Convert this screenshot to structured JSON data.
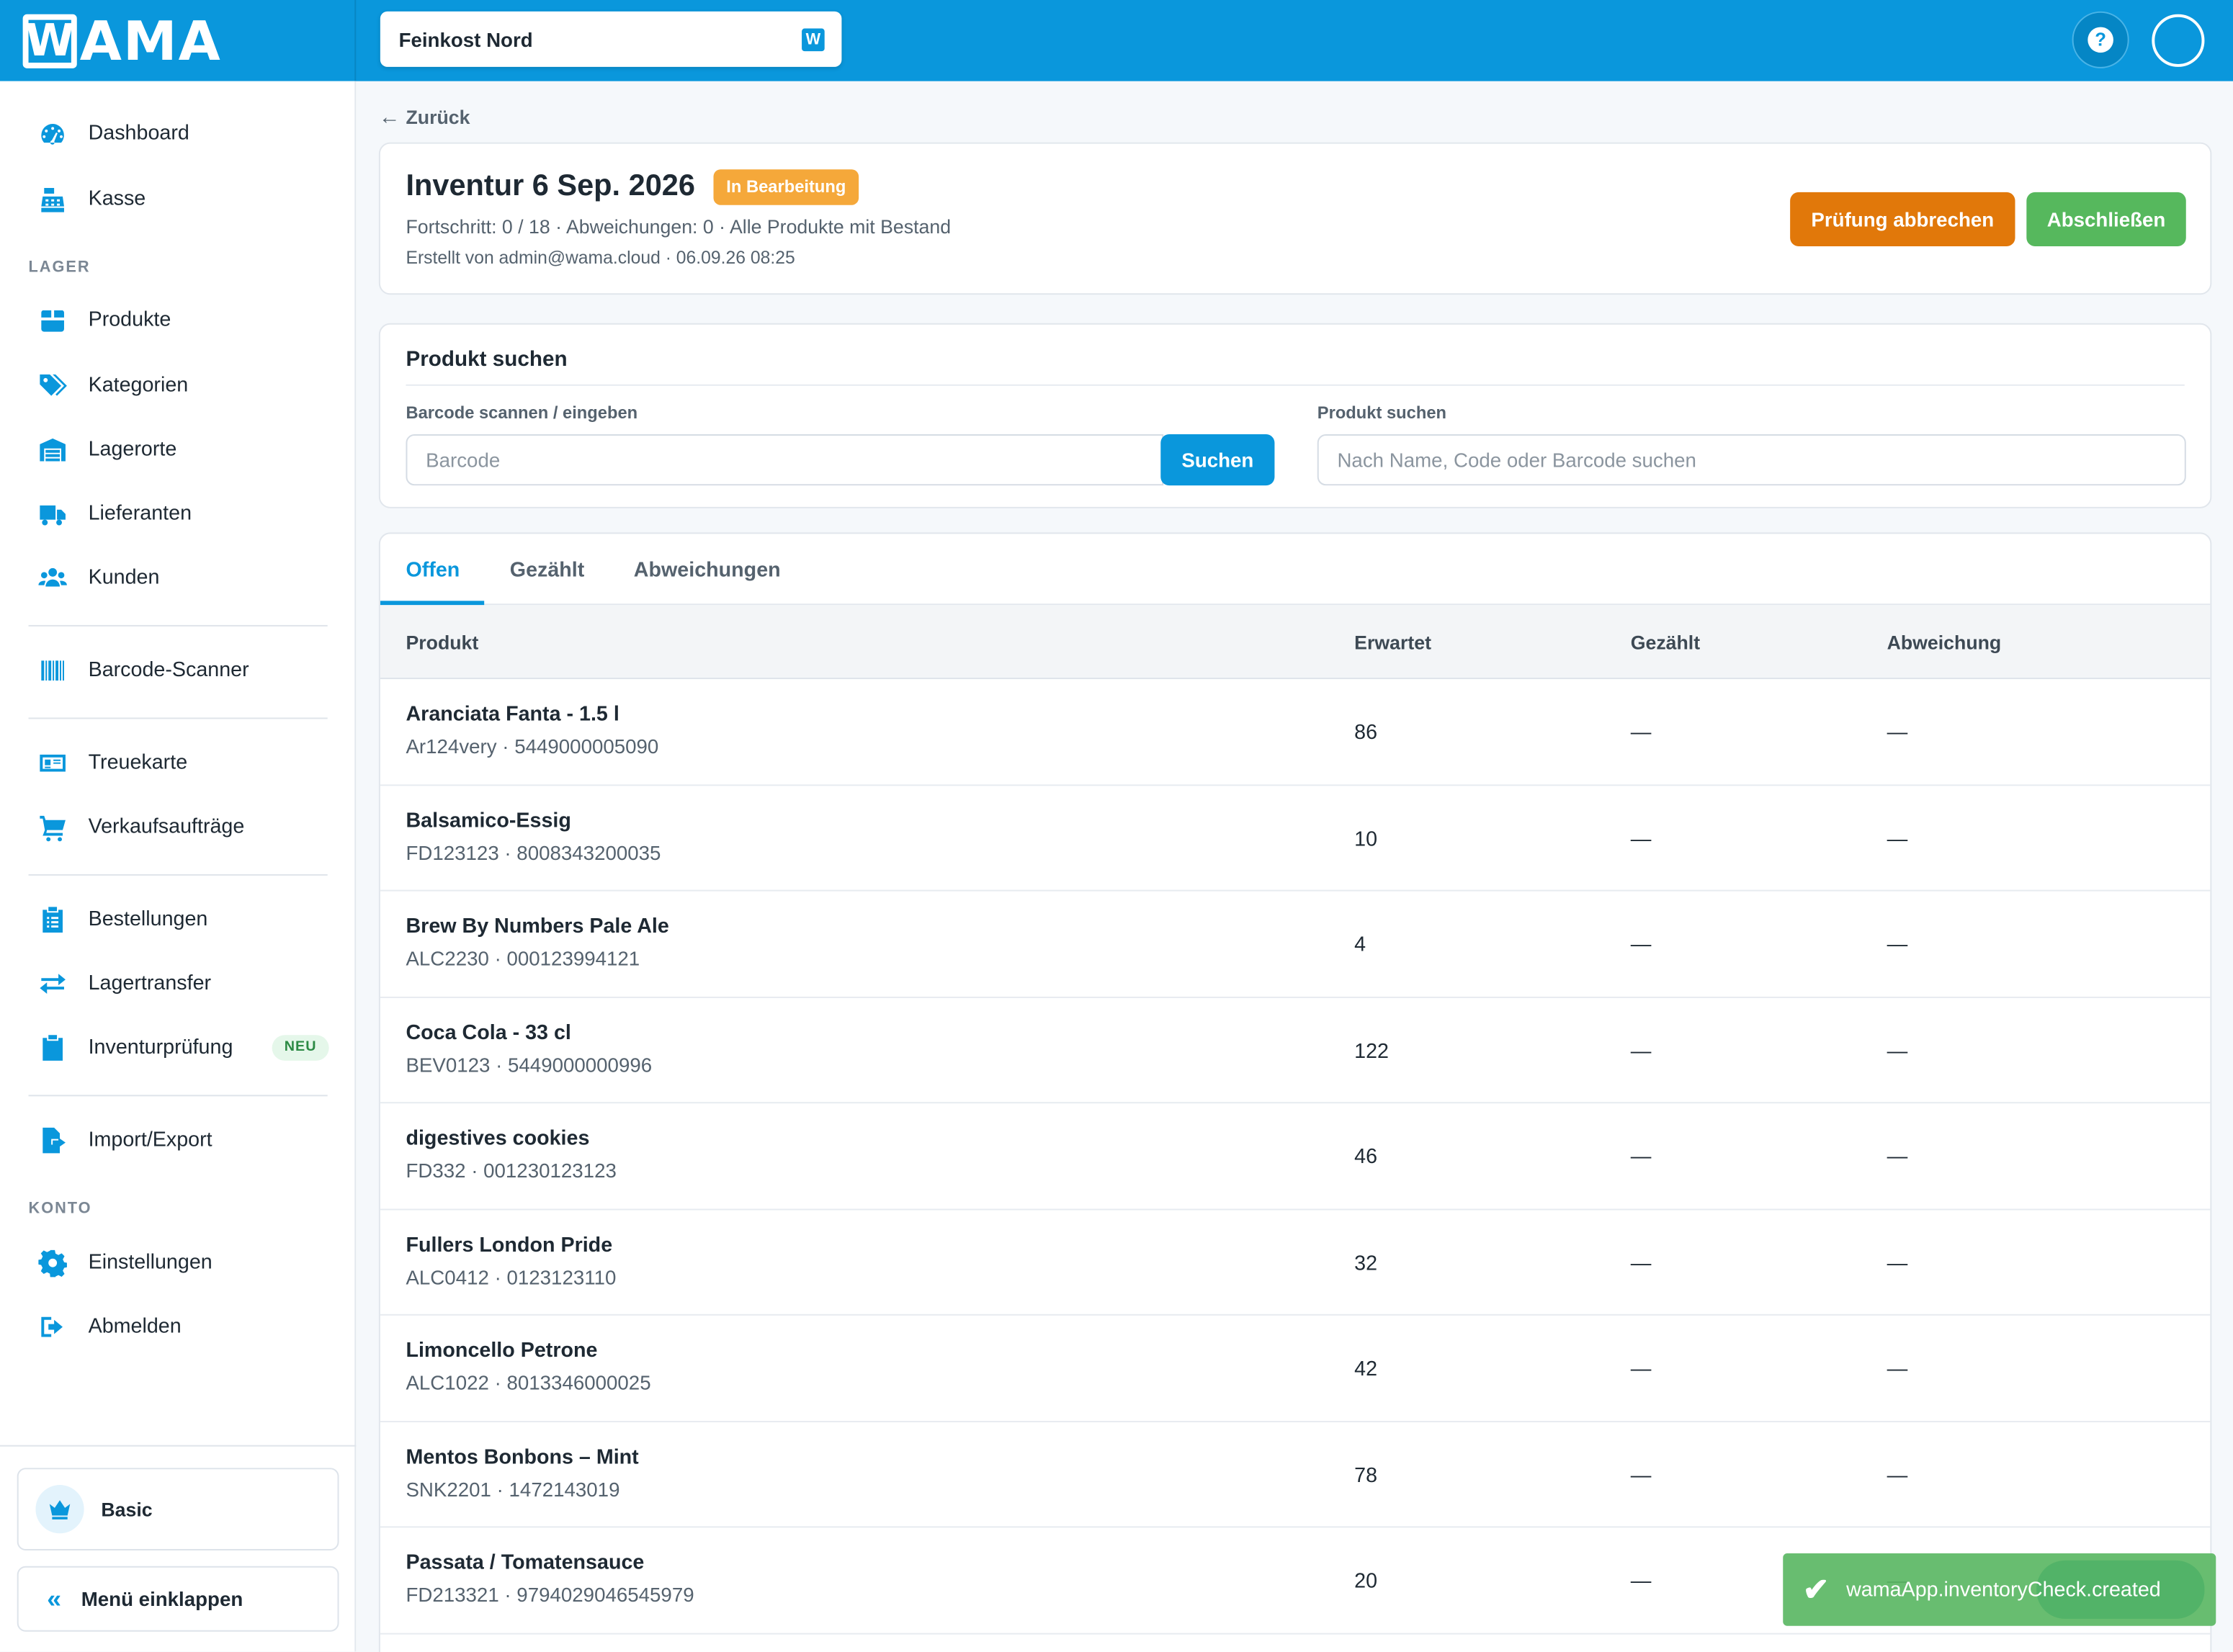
{
  "brand": {
    "logo_w": "W",
    "logo_rest": "AMA"
  },
  "header": {
    "store": "Feinkost Nord",
    "store_icon": "W",
    "help": "?"
  },
  "sidebar": {
    "items": [
      {
        "label": "Dashboard",
        "icon": "dashboard-icon"
      },
      {
        "label": "Kasse",
        "icon": "cash-register-icon"
      },
      {
        "label": "Produkte",
        "icon": "box-icon"
      },
      {
        "label": "Kategorien",
        "icon": "tags-icon"
      },
      {
        "label": "Lagerorte",
        "icon": "warehouse-icon"
      },
      {
        "label": "Lieferanten",
        "icon": "truck-icon"
      },
      {
        "label": "Kunden",
        "icon": "users-icon"
      },
      {
        "label": "Barcode-Scanner",
        "icon": "barcode-icon"
      },
      {
        "label": "Treuekarte",
        "icon": "id-card-icon"
      },
      {
        "label": "Verkaufsaufträge",
        "icon": "cart-icon"
      },
      {
        "label": "Bestellungen",
        "icon": "clipboard-list-icon"
      },
      {
        "label": "Lagertransfer",
        "icon": "transfer-icon"
      },
      {
        "label": "Inventurprüfung",
        "icon": "clipboard-check-icon"
      },
      {
        "label": "Import/Export",
        "icon": "file-export-icon"
      },
      {
        "label": "Einstellungen",
        "icon": "gear-icon"
      },
      {
        "label": "Abmelden",
        "icon": "sign-out-icon"
      }
    ],
    "section_lager": "LAGER",
    "section_konto": "KONTO",
    "badge_neu": "NEU",
    "plan": "Basic",
    "collapse": "Menü einklappen",
    "collapse_icon": "«"
  },
  "back": {
    "label": "Zurück",
    "arrow": "←"
  },
  "inventory": {
    "title": "Inventur 6 Sep. 2026",
    "status": "In Bearbeitung",
    "meta1": "Fortschritt: 0 / 18 · Abweichungen: 0 · Alle Produkte mit Bestand",
    "meta2": "Erstellt von admin@wama.cloud · 06.09.26 08:25",
    "abort_button": "Prüfung abbrechen",
    "finish_button": "Abschließen"
  },
  "search": {
    "title": "Produkt suchen",
    "barcode_label": "Barcode scannen / eingeben",
    "barcode_placeholder": "Barcode",
    "search_button": "Suchen",
    "product_label": "Produkt suchen",
    "product_placeholder": "Nach Name, Code oder Barcode suchen"
  },
  "tabs": [
    "Offen",
    "Gezählt",
    "Abweichungen"
  ],
  "table": {
    "headers": [
      "Produkt",
      "Erwartet",
      "Gezählt",
      "Abweichung"
    ],
    "rows": [
      {
        "name": "Aranciata Fanta - 1.5 l",
        "sub": "Ar124very · 5449000005090",
        "expected": "86",
        "counted": "—",
        "diff": "—"
      },
      {
        "name": "Balsamico-Essig",
        "sub": "FD123123 · 8008343200035",
        "expected": "10",
        "counted": "—",
        "diff": "—"
      },
      {
        "name": "Brew By Numbers Pale Ale",
        "sub": "ALC2230 · 000123994121",
        "expected": "4",
        "counted": "—",
        "diff": "—"
      },
      {
        "name": "Coca Cola - 33 cl",
        "sub": "BEV0123 · 5449000000996",
        "expected": "122",
        "counted": "—",
        "diff": "—"
      },
      {
        "name": "digestives cookies",
        "sub": "FD332 · 001230123123",
        "expected": "46",
        "counted": "—",
        "diff": "—"
      },
      {
        "name": "Fullers London Pride",
        "sub": "ALC0412 · 0123123110",
        "expected": "32",
        "counted": "—",
        "diff": "—"
      },
      {
        "name": "Limoncello Petrone",
        "sub": "ALC1022 · 8013346000025",
        "expected": "42",
        "counted": "—",
        "diff": "—"
      },
      {
        "name": "Mentos Bonbons – Mint",
        "sub": "SNK2201 · 1472143019",
        "expected": "78",
        "counted": "—",
        "diff": "—"
      },
      {
        "name": "Passata / Tomatensauce",
        "sub": "FD213321 · 9794029046545979",
        "expected": "20",
        "counted": "—",
        "diff": "—"
      }
    ]
  },
  "toast": {
    "message": "wamaApp.inventoryCheck.created",
    "icon": "✔"
  },
  "colors": {
    "primary": "#0a97dc",
    "orange": "#e1780a",
    "green": "#56b85d",
    "badge": "#f5a83a"
  }
}
